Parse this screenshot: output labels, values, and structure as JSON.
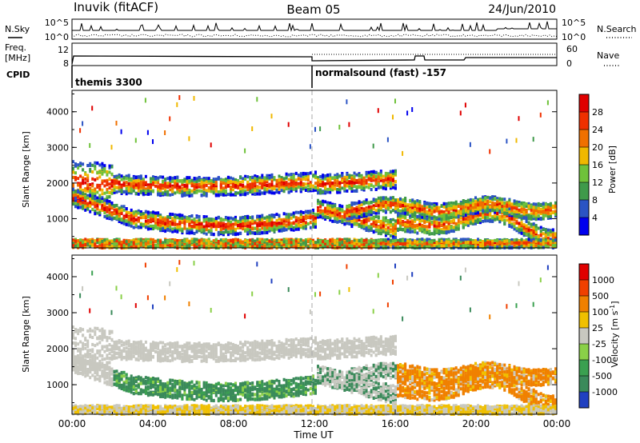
{
  "header": {
    "station": "Inuvik (fitACF)",
    "beam": "Beam 05",
    "date": "24/Jun/2010"
  },
  "summary": {
    "nsky_label": "N.Sky",
    "nsky_ticks": [
      "10^5",
      "10^0"
    ],
    "nsearch_label": "N.Search",
    "nsearch_ticks": [
      "10^5",
      "10^0"
    ],
    "freq_label": "Freq.",
    "freq_unit": "[MHz]",
    "freq_ticks": [
      "12",
      "8"
    ],
    "nave_label": "Nave",
    "nave_ticks": [
      "60",
      "0"
    ],
    "cpid_label": "CPID",
    "cpid_entries": [
      {
        "name": "themis 3300",
        "start_hour": 0
      },
      {
        "name": "normalsound (fast) -157",
        "start_hour": 12
      }
    ]
  },
  "chart_data": [
    {
      "type": "heatmap",
      "name": "power",
      "ylabel": "Slant Range [km]",
      "y_ticks": [
        "4000",
        "3000",
        "2000",
        "1000"
      ],
      "y_values": [
        4000,
        3000,
        2000,
        1000
      ],
      "ylim": [
        180,
        4600
      ],
      "xlim": [
        0,
        24
      ],
      "colorbar_label": "Power [dB]",
      "colorbar_ticks": [
        "28",
        "24",
        "20",
        "16",
        "12",
        "8",
        "4"
      ],
      "colorbar_colors": [
        "#0000ee",
        "#2b54c4",
        "#3f9a4a",
        "#6fc23a",
        "#f0b800",
        "#f07000",
        "#f03000",
        "#e00000"
      ]
    },
    {
      "type": "heatmap",
      "name": "velocity",
      "ylabel": "Slant Range [km]",
      "y_ticks": [
        "4000",
        "3000",
        "2000",
        "1000"
      ],
      "y_values": [
        4000,
        3000,
        2000,
        1000
      ],
      "ylim": [
        180,
        4600
      ],
      "xlim": [
        0,
        24
      ],
      "xlabel": "Time UT",
      "x_ticks": [
        "00:00",
        "04:00",
        "08:00",
        "12:00",
        "16:00",
        "20:00",
        "00:00"
      ],
      "x_values": [
        0,
        4,
        8,
        12,
        16,
        20,
        24
      ],
      "colorbar_label": "Velocity [m s",
      "colorbar_label_sup": "-1",
      "colorbar_label_end": "]",
      "colorbar_ticks": [
        "1000",
        "500",
        "100",
        "25",
        "-25",
        "-100",
        "-500",
        "-1000"
      ],
      "colorbar_colors": [
        "#2040c0",
        "#3a8a5a",
        "#3aa050",
        "#8ad048",
        "#c8c8c0",
        "#f0c000",
        "#f08000",
        "#f04000",
        "#e00000"
      ]
    }
  ]
}
